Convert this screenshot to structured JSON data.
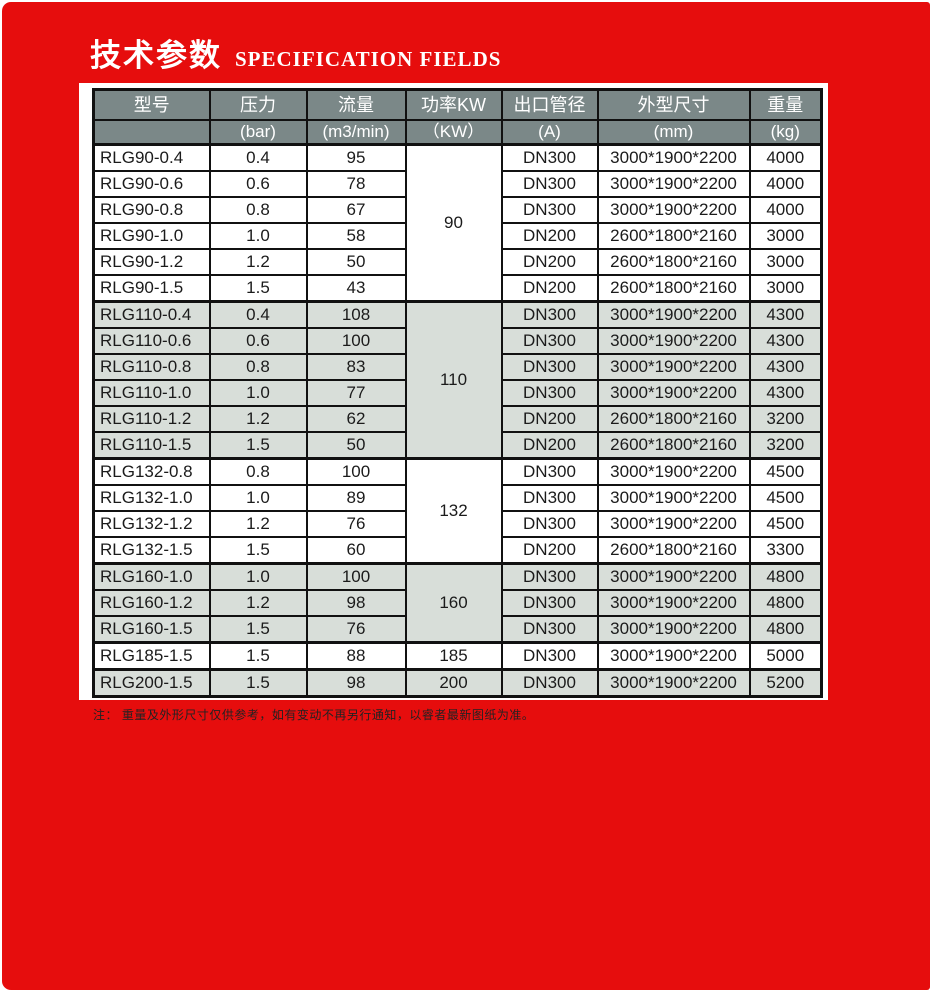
{
  "title": {
    "zh": "技术参数",
    "en": "SPECIFICATION FIELDS"
  },
  "table": {
    "header": {
      "row1": [
        "型号",
        "压力",
        "流量",
        "功率KW",
        "出口管径",
        "外型尺寸",
        "重量"
      ],
      "row2": [
        "",
        "(bar)",
        "(m3/min)",
        "（KW）",
        "(A)",
        "(mm)",
        "(kg)"
      ]
    },
    "groups": [
      {
        "power": "90",
        "shaded": false,
        "rows": [
          [
            "RLG90-0.4",
            "0.4",
            "95",
            "DN300",
            "3000*1900*2200",
            "4000"
          ],
          [
            "RLG90-0.6",
            "0.6",
            "78",
            "DN300",
            "3000*1900*2200",
            "4000"
          ],
          [
            "RLG90-0.8",
            "0.8",
            "67",
            "DN300",
            "3000*1900*2200",
            "4000"
          ],
          [
            "RLG90-1.0",
            "1.0",
            "58",
            "DN200",
            "2600*1800*2160",
            "3000"
          ],
          [
            "RLG90-1.2",
            "1.2",
            "50",
            "DN200",
            "2600*1800*2160",
            "3000"
          ],
          [
            "RLG90-1.5",
            "1.5",
            "43",
            "DN200",
            "2600*1800*2160",
            "3000"
          ]
        ]
      },
      {
        "power": "110",
        "shaded": true,
        "rows": [
          [
            "RLG110-0.4",
            "0.4",
            "108",
            "DN300",
            "3000*1900*2200",
            "4300"
          ],
          [
            "RLG110-0.6",
            "0.6",
            "100",
            "DN300",
            "3000*1900*2200",
            "4300"
          ],
          [
            "RLG110-0.8",
            "0.8",
            "83",
            "DN300",
            "3000*1900*2200",
            "4300"
          ],
          [
            "RLG110-1.0",
            "1.0",
            "77",
            "DN300",
            "3000*1900*2200",
            "4300"
          ],
          [
            "RLG110-1.2",
            "1.2",
            "62",
            "DN200",
            "2600*1800*2160",
            "3200"
          ],
          [
            "RLG110-1.5",
            "1.5",
            "50",
            "DN200",
            "2600*1800*2160",
            "3200"
          ]
        ]
      },
      {
        "power": "132",
        "shaded": false,
        "rows": [
          [
            "RLG132-0.8",
            "0.8",
            "100",
            "DN300",
            "3000*1900*2200",
            "4500"
          ],
          [
            "RLG132-1.0",
            "1.0",
            "89",
            "DN300",
            "3000*1900*2200",
            "4500"
          ],
          [
            "RLG132-1.2",
            "1.2",
            "76",
            "DN300",
            "3000*1900*2200",
            "4500"
          ],
          [
            "RLG132-1.5",
            "1.5",
            "60",
            "DN200",
            "2600*1800*2160",
            "3300"
          ]
        ]
      },
      {
        "power": "160",
        "shaded": true,
        "rows": [
          [
            "RLG160-1.0",
            "1.0",
            "100",
            "DN300",
            "3000*1900*2200",
            "4800"
          ],
          [
            "RLG160-1.2",
            "1.2",
            "98",
            "DN300",
            "3000*1900*2200",
            "4800"
          ],
          [
            "RLG160-1.5",
            "1.5",
            "76",
            "DN300",
            "3000*1900*2200",
            "4800"
          ]
        ]
      },
      {
        "power": "185",
        "shaded": false,
        "rows": [
          [
            "RLG185-1.5",
            "1.5",
            "88",
            "DN300",
            "3000*1900*2200",
            "5000"
          ]
        ]
      },
      {
        "power": "200",
        "shaded": true,
        "rows": [
          [
            "RLG200-1.5",
            "1.5",
            "98",
            "DN300",
            "3000*1900*2200",
            "5200"
          ]
        ]
      }
    ]
  },
  "footnote": "注： 重量及外形尺寸仅供参考，如有变动不再另行通知，以睿者最新图纸为准。",
  "colors": {
    "red": "#e60d0d",
    "header_bg": "#7b8888",
    "band_bg": "#d8ded9",
    "border": "#111111"
  }
}
